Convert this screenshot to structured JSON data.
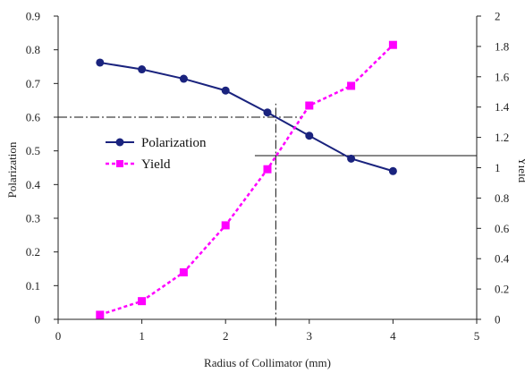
{
  "chart_data": {
    "type": "line",
    "title": "",
    "xlabel": "Radius of Collimator (mm)",
    "ylabel": "Polarization",
    "y2label": "Yield",
    "xlim": [
      0,
      5
    ],
    "ylim": [
      0,
      0.9
    ],
    "y2lim": [
      0,
      2
    ],
    "x_ticks": [
      "0",
      "1",
      "2",
      "3",
      "4",
      "5"
    ],
    "y_ticks": [
      "0",
      "0.1",
      "0.2",
      "0.3",
      "0.4",
      "0.5",
      "0.6",
      "0.7",
      "0.8",
      "0.9"
    ],
    "y2_ticks": [
      "0",
      "0.2",
      "0.4",
      "0.6",
      "0.8",
      "1",
      "1.2",
      "1.4",
      "1.6",
      "1.8",
      "2"
    ],
    "grid": false,
    "legend_position": "center-left",
    "series": [
      {
        "name": "Polarization",
        "axis": "left",
        "color": "#1a237e",
        "marker": "circle",
        "line": "solid",
        "x": [
          0.5,
          1.0,
          1.5,
          2.0,
          2.5,
          3.0,
          3.5,
          4.0
        ],
        "y": [
          0.762,
          0.742,
          0.714,
          0.679,
          0.614,
          0.545,
          0.477,
          0.44
        ]
      },
      {
        "name": "Yield",
        "axis": "right",
        "color": "#ff00ff",
        "marker": "square",
        "line": "dashed",
        "x": [
          0.5,
          1.0,
          1.5,
          2.0,
          2.5,
          3.0,
          3.5,
          4.0
        ],
        "y": [
          0.03,
          0.12,
          0.31,
          0.62,
          0.99,
          1.41,
          1.54,
          1.81
        ]
      }
    ],
    "reference_lines": [
      {
        "orientation": "horizontal",
        "axis": "left",
        "value": 0.6,
        "x_from": 0,
        "x_to": 2.9,
        "style": "dash-dot"
      },
      {
        "orientation": "horizontal",
        "axis": "right",
        "value": 1.08,
        "x_from": 2.35,
        "x_to": 5.0,
        "style": "solid"
      },
      {
        "orientation": "vertical",
        "value": 2.6,
        "y_from": -0.02,
        "y_to": 0.64,
        "style": "dash-dot"
      }
    ]
  }
}
